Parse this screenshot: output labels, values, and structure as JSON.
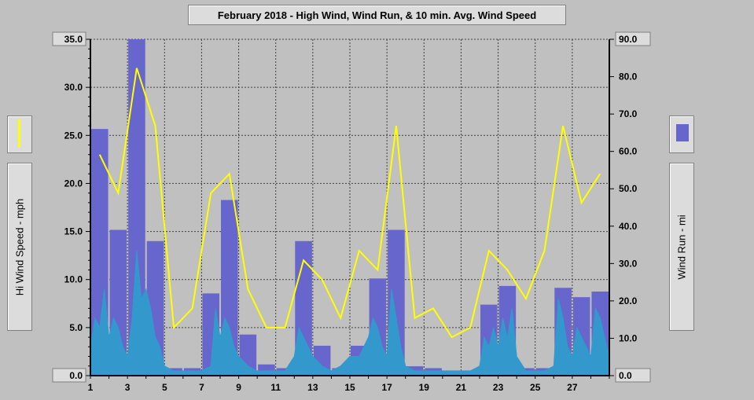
{
  "chart_data": {
    "type": "bar",
    "title": "February 2018 - High Wind, Wind Run, & 10 min. Avg. Wind Speed",
    "ylabel_left": "Hi Wind Speed - mph",
    "ylabel_right": "Wind Run - mi",
    "x_ticks": [
      "1",
      "3",
      "5",
      "7",
      "9",
      "11",
      "13",
      "15",
      "17",
      "19",
      "21",
      "23",
      "25",
      "27"
    ],
    "xlim": [
      1,
      29
    ],
    "ylim_left": [
      0,
      35
    ],
    "ylim_right": [
      0,
      90
    ],
    "y_ticks_left": [
      "0.0",
      "5.0",
      "10.0",
      "15.0",
      "20.0",
      "25.0",
      "30.0",
      "35.0"
    ],
    "y_ticks_right": [
      "0.0",
      "10.0",
      "20.0",
      "30.0",
      "40.0",
      "50.0",
      "60.0",
      "70.0",
      "80.0",
      "90.0"
    ],
    "grid": true,
    "colors": {
      "wind_run_bars": "#6666cc",
      "hi_wind_line": "#ffff00",
      "avg_wind_area": "#3399cc",
      "grid": "#404040",
      "plot_background": "#c0c0c0"
    },
    "series": [
      {
        "axis": "right",
        "type": "bar",
        "days": [
          1,
          2,
          3,
          4,
          5,
          6,
          7,
          8,
          9,
          10,
          11,
          12,
          13,
          14,
          15,
          16,
          17,
          18,
          19,
          20,
          21,
          22,
          23,
          24,
          25,
          26,
          27,
          28
        ],
        "values": [
          66,
          39,
          90,
          36,
          2,
          2,
          22,
          47,
          11,
          3,
          2,
          36,
          8,
          2,
          8,
          26,
          39,
          2.5,
          2,
          0.5,
          0.5,
          19,
          24,
          2,
          2,
          23.5,
          21,
          22.5
        ]
      },
      {
        "axis": "left",
        "type": "line",
        "days": [
          1.5,
          2.5,
          3.5,
          4.5,
          5.5,
          6.5,
          7.5,
          8.5,
          9.5,
          10.5,
          11.5,
          12.5,
          13.5,
          14.5,
          15.5,
          16.5,
          17.5,
          18.5,
          19.5,
          20.5,
          21.5,
          22.5,
          23.5,
          24.5,
          25.5,
          26.5,
          27.5,
          28.5
        ],
        "values": [
          23,
          19,
          32,
          26,
          5,
          7,
          19,
          21,
          9,
          5,
          5,
          12,
          10,
          6,
          13,
          11,
          26,
          6,
          7,
          4,
          5,
          13,
          11,
          8,
          13,
          26,
          18,
          21
        ]
      },
      {
        "axis": "left",
        "type": "area",
        "days": [
          1.0,
          1.25,
          1.5,
          1.75,
          2.0,
          2.25,
          2.5,
          2.75,
          3.0,
          3.25,
          3.5,
          3.75,
          4.0,
          4.25,
          4.5,
          4.75,
          5.0,
          5.5,
          6.0,
          6.5,
          7.0,
          7.5,
          7.75,
          8.0,
          8.25,
          8.5,
          8.75,
          9.0,
          9.5,
          10.0,
          10.5,
          11.0,
          11.5,
          12.0,
          12.25,
          12.5,
          12.75,
          13.0,
          13.5,
          14.0,
          14.5,
          15.0,
          15.5,
          16.0,
          16.25,
          16.5,
          16.75,
          17.0,
          17.25,
          17.5,
          17.75,
          18.0,
          18.5,
          19.0,
          19.5,
          20.0,
          21.0,
          21.5,
          22.0,
          22.25,
          22.5,
          22.75,
          23.0,
          23.25,
          23.5,
          23.75,
          24.0,
          24.5,
          25.0,
          25.5,
          26.0,
          26.25,
          26.5,
          26.75,
          27.0,
          27.25,
          27.5,
          27.75,
          28.0,
          28.25,
          28.5,
          28.75,
          29.0
        ],
        "values": [
          3,
          6,
          5,
          9,
          4,
          6,
          5,
          3,
          2,
          6,
          13,
          8,
          9,
          7,
          4,
          3,
          1,
          0.5,
          0.5,
          0.5,
          0.5,
          1,
          7,
          4,
          6,
          5,
          3,
          2,
          1,
          0.5,
          0.5,
          0.5,
          0.5,
          2,
          5,
          4,
          3,
          2,
          1,
          0.5,
          1,
          2,
          2,
          4,
          6,
          5,
          3,
          2,
          9,
          6,
          3,
          1,
          0.5,
          0.5,
          0.5,
          0.5,
          0.5,
          0.5,
          1,
          4,
          3,
          5,
          3,
          6,
          4,
          7,
          2,
          0.5,
          0.5,
          0.5,
          1,
          8,
          6,
          3,
          2,
          5,
          4,
          3,
          2,
          7,
          6,
          4,
          2
        ]
      }
    ]
  },
  "legend": {
    "line_icon": "yellow-line-swatch",
    "bar_icon": "blue-bar-swatch"
  }
}
